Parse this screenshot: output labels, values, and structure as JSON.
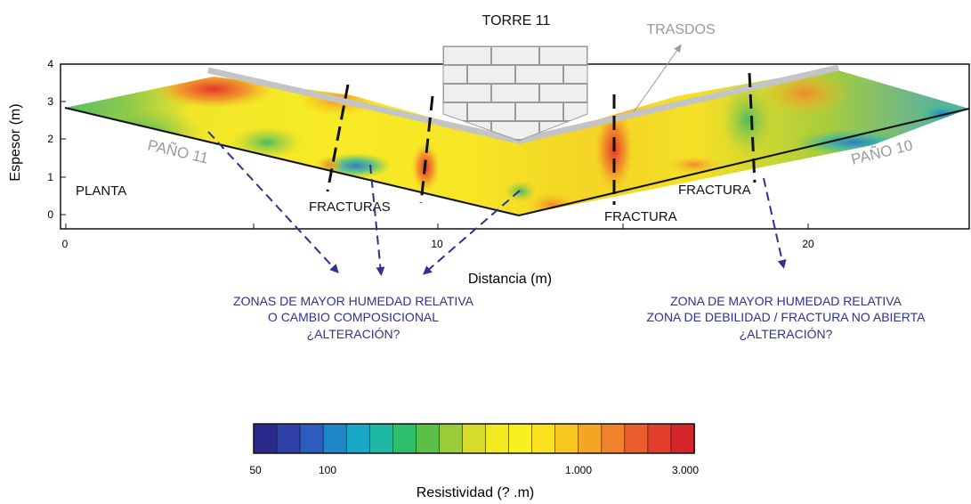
{
  "header": {
    "tower_label": "TORRE 11",
    "trasdos_label": "TRASDOS"
  },
  "axes": {
    "ylabel": "Espesor (m)",
    "xlabel": "Distancia (m)",
    "y_ticks": [
      "4",
      "3",
      "2",
      "1",
      "0"
    ],
    "x_ticks": [
      "0",
      "10",
      "20"
    ]
  },
  "section_labels": {
    "pano_11": "PAÑO 11",
    "pano_10": "PAÑO 10",
    "planta": "PLANTA",
    "fracturas": "FRACTURAS",
    "fractura_center": "FRACTURA",
    "fractura_right": "FRACTURA"
  },
  "annotations": {
    "left": {
      "line1": "ZONAS DE MAYOR HUMEDAD RELATIVA",
      "line2": "O CAMBIO COMPOSICIONAL",
      "line3": "¿ALTERACIÓN?"
    },
    "right": {
      "line1": "ZONA DE MAYOR HUMEDAD RELATIVA",
      "line2": "ZONA DE DEBILIDAD / FRACTURA NO ABIERTA",
      "line3": "¿ALTERACIÓN?"
    }
  },
  "colorbar": {
    "title": "Resistividad (? .m)",
    "tick_labels": [
      "50",
      "100",
      "1.000",
      "3.000"
    ],
    "scale": "log",
    "colors": [
      "#2a2a8c",
      "#2f3fa8",
      "#2d5cbf",
      "#1f86c8",
      "#19a8c6",
      "#1fb8a2",
      "#2fbf6c",
      "#5cc048",
      "#9ccb3a",
      "#d6dc2c",
      "#f4ea22",
      "#f9f020",
      "#fae21e",
      "#f8c81e",
      "#f5a524",
      "#f0822c",
      "#ea5e2e",
      "#e23e2c",
      "#d6262c"
    ]
  },
  "colors": {
    "annotation_text": "#2e3190",
    "arrow": "#2e3190",
    "trasdos_gray": "#bdbdbd"
  }
}
